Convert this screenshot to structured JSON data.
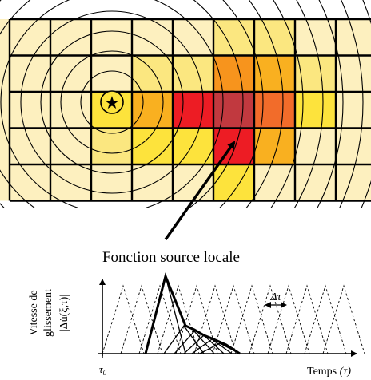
{
  "colors": {
    "background": "#ffffff",
    "cell_base": "#fdf0bf",
    "cell_light_yellow": "#fbe780",
    "cell_yellow": "#fde33c",
    "cell_orange_light": "#f9b020",
    "cell_orange": "#f7941d",
    "cell_orange_red": "#f26c2a",
    "cell_red": "#ed1c24",
    "cell_dark_red": "#c1393f",
    "grid_line": "#000000",
    "circle_line": "#000000"
  },
  "fault_grid": {
    "rows": 5,
    "cols": 9,
    "hypocenter_symbol": "★",
    "cell_levels": [
      [
        0,
        0,
        0,
        0,
        0,
        1,
        1,
        0,
        0
      ],
      [
        0,
        0,
        0,
        1,
        1,
        4,
        3,
        1,
        0
      ],
      [
        0,
        0,
        2,
        3,
        6,
        7,
        5,
        2,
        0
      ],
      [
        0,
        0,
        1,
        2,
        2,
        6,
        3,
        0,
        0
      ],
      [
        0,
        0,
        0,
        0,
        0,
        2,
        0,
        0,
        0
      ]
    ]
  },
  "labels": {
    "source_function": "Fonction source locale",
    "y_axis_line1": "Vitesse de",
    "y_axis_line2": "glissement",
    "y_axis_line3": "|Δu̇(ξ,τ)|",
    "delta_tau": "Δτ",
    "tau0": "τ",
    "tau0_sub": "0",
    "time_axis": "Temps",
    "time_axis_symbol": "(τ)"
  },
  "source_time_function": {
    "triangles_count": 13,
    "envelope_peak_index": 0
  }
}
